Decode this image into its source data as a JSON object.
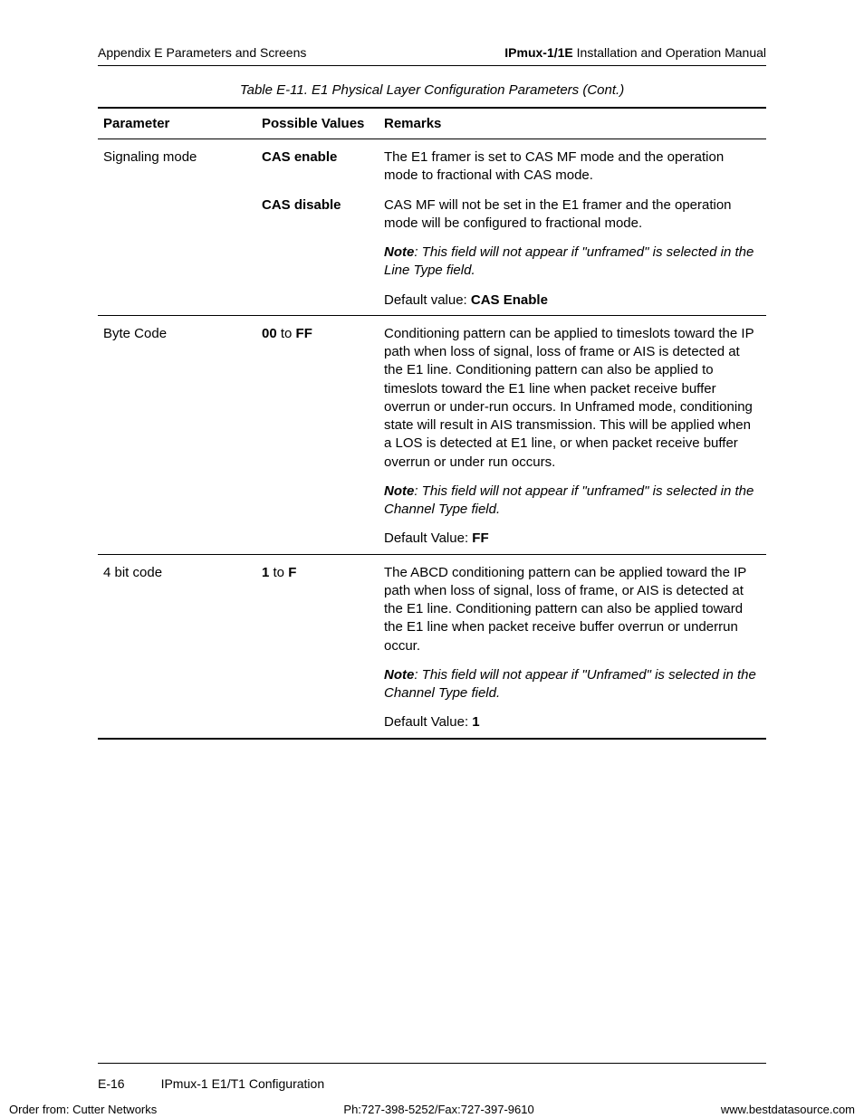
{
  "header": {
    "left": "Appendix E  Parameters and Screens",
    "right_bold": "IPmux-1/1E",
    "right_rest": " Installation and Operation Manual"
  },
  "caption": "Table E-11.  E1 Physical Layer Configuration Parameters (Cont.)",
  "columns": {
    "c1": "Parameter",
    "c2": "Possible Values",
    "c3": "Remarks"
  },
  "rows": {
    "sig": {
      "param": "Signaling mode",
      "v1": "CAS enable",
      "r1": "The E1 framer is set to CAS MF mode and the operation mode to fractional with CAS mode.",
      "v2": "CAS disable",
      "r2": "CAS MF will not be set in the E1 framer and the operation mode will be configured to fractional mode.",
      "note_label": "Note",
      "note_text": ": This field will not appear if \"unframed\" is selected in the Line Type field.",
      "default_label": "Default value: ",
      "default_value": "CAS Enable"
    },
    "byte": {
      "param": "Byte Code",
      "v_pre": "00",
      "v_mid": " to ",
      "v_post": "FF",
      "r1": "Conditioning pattern can be applied to timeslots toward the IP path when loss of signal, loss of frame or AIS is detected at the E1 line. Conditioning pattern can also be applied to timeslots toward the E1 line when packet receive buffer overrun or under-run occurs. In Unframed mode, conditioning state will result in AIS transmission. This will be applied when a LOS is detected at E1 line, or when packet receive buffer overrun or under run occurs.",
      "note_label": "Note",
      "note_text": ": This field will not appear if \"unframed\" is selected in the Channel Type field.",
      "default_label": "Default Value: ",
      "default_value": "FF"
    },
    "fourbit": {
      "param": "4 bit code",
      "v_pre": "1",
      "v_mid": " to ",
      "v_post": "F",
      "r1": "The ABCD conditioning pattern can be applied toward the IP path when loss of signal, loss of frame, or AIS is detected at the E1 line. Conditioning pattern can also be applied toward the E1 line when packet receive buffer overrun or underrun occur.",
      "note_label": "Note",
      "note_text": ": This field will not appear if \"Unframed\" is selected in the Channel Type field.",
      "default_label": "Default Value:  ",
      "default_value": "1"
    }
  },
  "footer": {
    "page_num": "E-16",
    "section": "IPmux-1 E1/T1 Configuration"
  },
  "orderline": {
    "left": "Order from: Cutter Networks",
    "mid": "Ph:727-398-5252/Fax:727-397-9610",
    "right": "www.bestdatasource.com"
  }
}
